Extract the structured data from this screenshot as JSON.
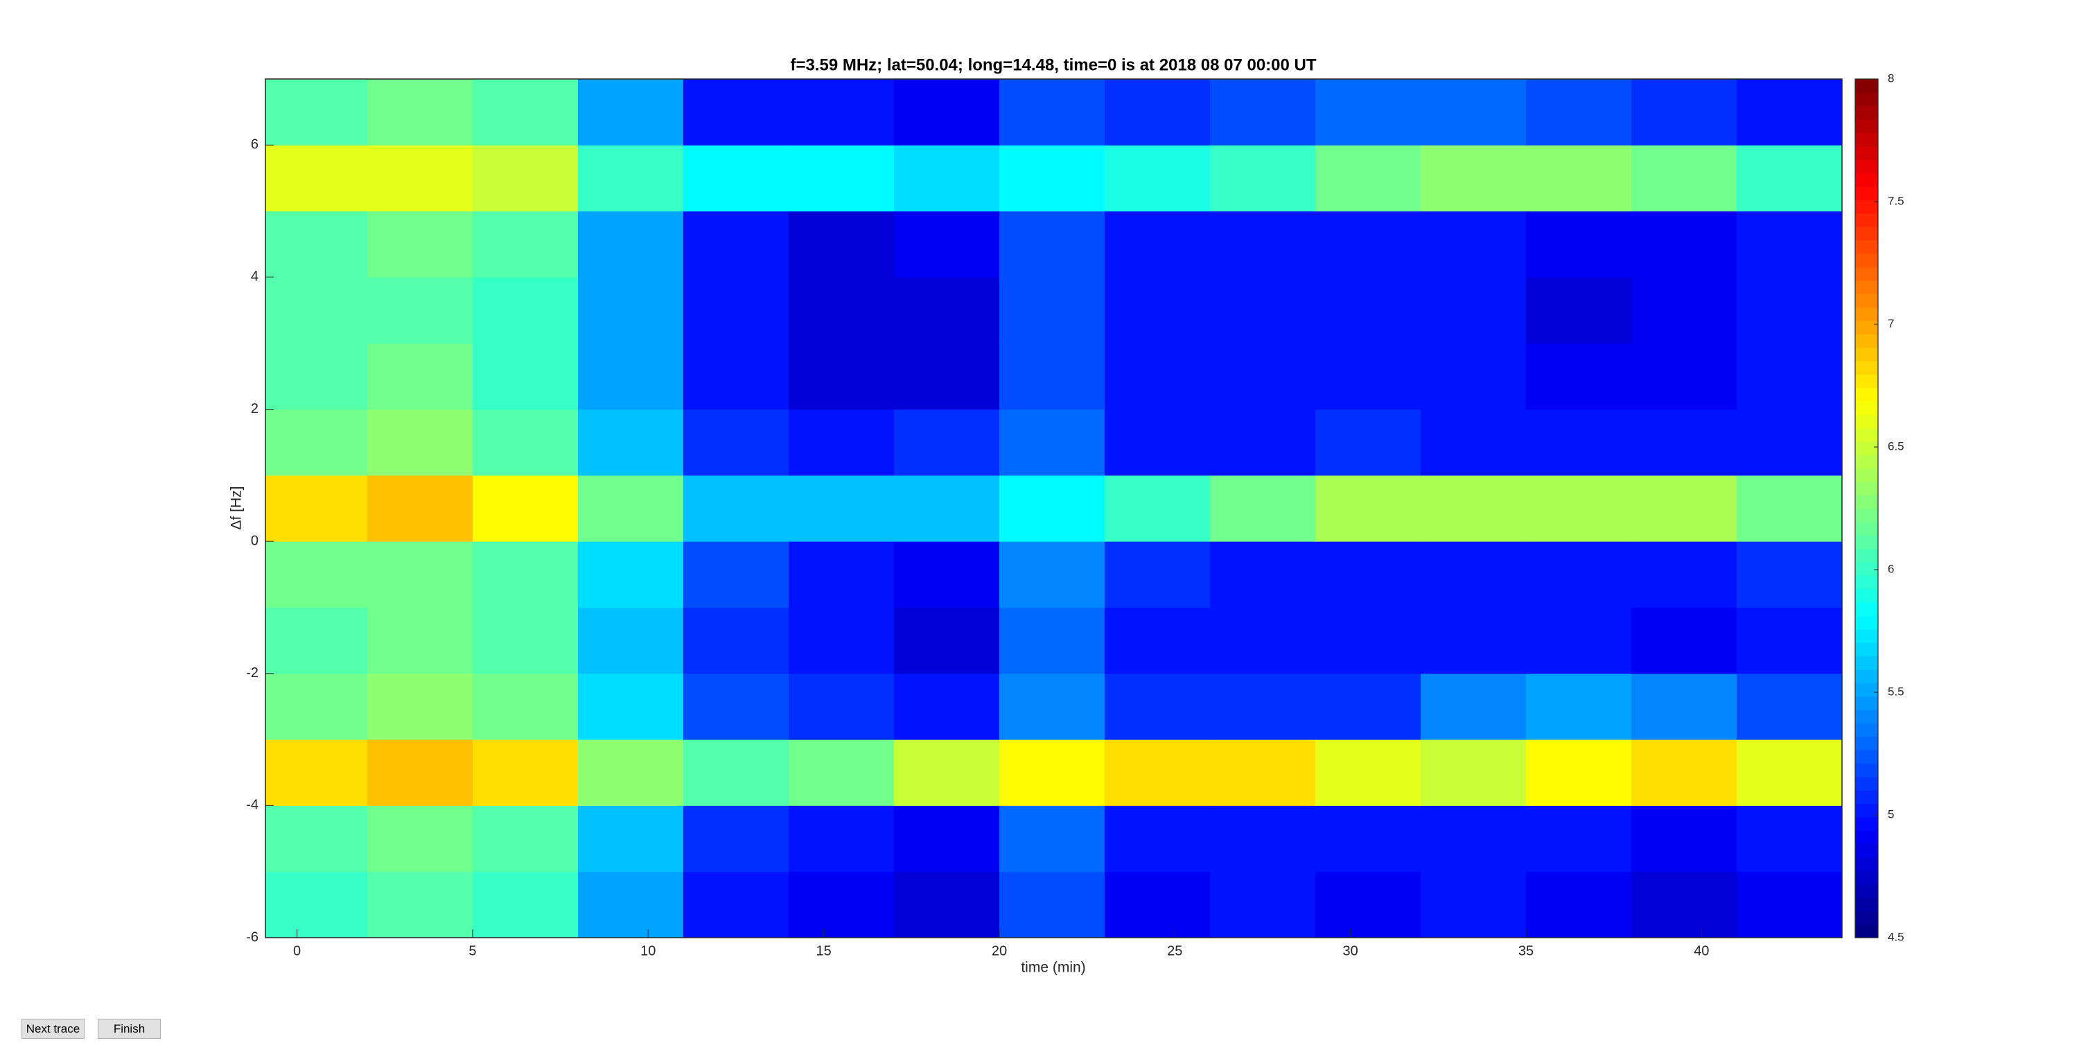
{
  "chart_data": {
    "type": "heatmap",
    "title": "f=3.59 MHz;  lat=50.04; long=14.48, time=0 is at 2018 08 07 00:00 UT",
    "xlabel": "time (min)",
    "ylabel": "Δf [Hz]",
    "xlim": [
      -0.9,
      44
    ],
    "ylim": [
      -6,
      7
    ],
    "xticks": [
      0,
      5,
      10,
      15,
      20,
      25,
      30,
      35,
      40
    ],
    "yticks": [
      -6,
      -4,
      -2,
      0,
      2,
      4,
      6
    ],
    "x_bins": [
      -0.9,
      2,
      5,
      8,
      11,
      14,
      17,
      20,
      23,
      26,
      29,
      32,
      35,
      38,
      41,
      44
    ],
    "y_bins": [
      -6,
      -5,
      -4,
      -3,
      -2,
      -1,
      0,
      1,
      2,
      3,
      4,
      5,
      6,
      7
    ],
    "z": [
      [
        6.0,
        6.1,
        6.0,
        5.5,
        5.0,
        4.9,
        4.8,
        5.2,
        4.9,
        5.0,
        4.9,
        5.0,
        4.9,
        4.8,
        4.9
      ],
      [
        6.1,
        6.2,
        6.1,
        5.6,
        5.1,
        5.0,
        4.9,
        5.3,
        5.0,
        5.0,
        5.0,
        5.0,
        5.0,
        4.9,
        5.0
      ],
      [
        6.8,
        6.9,
        6.8,
        6.3,
        6.1,
        6.2,
        6.5,
        6.7,
        6.8,
        6.8,
        6.6,
        6.5,
        6.7,
        6.8,
        6.6
      ],
      [
        6.2,
        6.3,
        6.2,
        5.7,
        5.2,
        5.1,
        5.0,
        5.4,
        5.1,
        5.1,
        5.1,
        5.4,
        5.5,
        5.4,
        5.2
      ],
      [
        6.1,
        6.2,
        6.1,
        5.6,
        5.1,
        5.0,
        4.8,
        5.3,
        5.0,
        5.0,
        5.0,
        5.0,
        5.0,
        4.9,
        5.0
      ],
      [
        6.2,
        6.2,
        6.1,
        5.7,
        5.2,
        5.0,
        4.9,
        5.4,
        5.1,
        5.0,
        5.0,
        5.0,
        5.0,
        5.0,
        5.1
      ],
      [
        6.8,
        6.9,
        6.7,
        6.2,
        5.6,
        5.6,
        5.6,
        5.8,
        6.0,
        6.2,
        6.4,
        6.4,
        6.4,
        6.4,
        6.2
      ],
      [
        6.2,
        6.3,
        6.1,
        5.6,
        5.1,
        5.0,
        5.1,
        5.3,
        5.0,
        5.0,
        5.1,
        5.0,
        5.0,
        5.0,
        5.0
      ],
      [
        6.1,
        6.2,
        6.0,
        5.5,
        5.0,
        4.8,
        4.8,
        5.2,
        5.0,
        5.0,
        5.0,
        5.0,
        4.9,
        4.9,
        5.0
      ],
      [
        6.1,
        6.1,
        6.0,
        5.5,
        5.0,
        4.8,
        4.8,
        5.2,
        5.0,
        5.0,
        5.0,
        5.0,
        4.8,
        4.9,
        5.0
      ],
      [
        6.1,
        6.2,
        6.1,
        5.5,
        5.0,
        4.8,
        4.9,
        5.2,
        5.0,
        5.0,
        5.0,
        5.0,
        4.9,
        4.9,
        5.0
      ],
      [
        6.6,
        6.6,
        6.5,
        6.0,
        5.8,
        5.8,
        5.7,
        5.8,
        5.9,
        6.0,
        6.2,
        6.3,
        6.3,
        6.2,
        6.0
      ],
      [
        6.1,
        6.2,
        6.1,
        5.5,
        5.0,
        5.0,
        4.9,
        5.2,
        5.1,
        5.2,
        5.3,
        5.3,
        5.2,
        5.1,
        5.0
      ]
    ],
    "clim": [
      4.5,
      8
    ],
    "cticks": [
      4.5,
      5,
      5.5,
      6,
      6.5,
      7,
      7.5,
      8
    ],
    "colormap": "jet"
  },
  "ui": {
    "buttons": [
      "Next trace",
      "Finish"
    ]
  }
}
